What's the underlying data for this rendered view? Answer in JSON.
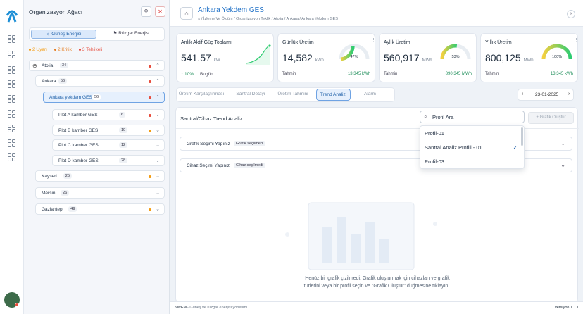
{
  "sidebar": {
    "logo": "logo-icon"
  },
  "tree": {
    "title": "Organizasyon Ağacı",
    "tabs": [
      "Güneş Enerjisi",
      "Rüzgar Enerjisi"
    ],
    "alerts": [
      {
        "label": "2 Uyarı",
        "color": "#f39c12"
      },
      {
        "label": "2 Kritik",
        "color": "#e67e22"
      },
      {
        "label": "3 Tehlikeli",
        "color": "#e74c3c"
      }
    ],
    "root": {
      "label": "Atolia",
      "count": "34"
    },
    "ankara": {
      "label": "Ankara",
      "count": "56"
    },
    "selected": {
      "label": "Ankara yekdem GES",
      "count": "56"
    },
    "plots": [
      {
        "label": "Plot A kamber GES",
        "count": "6"
      },
      {
        "label": "Plot B kamber GES",
        "count": "10"
      },
      {
        "label": "Plot C kamber GES",
        "count": "12"
      },
      {
        "label": "Plot D kamber GES",
        "count": "28"
      }
    ],
    "cities": [
      {
        "label": "Kayseri",
        "count": "25"
      },
      {
        "label": "Mersin",
        "count": "26"
      },
      {
        "label": "Gaziantep",
        "count": "49"
      }
    ]
  },
  "header": {
    "title": "Ankara Yekdem GES",
    "breadcrumb": "/ İzleme Ve Ölçüm / Organizasyon Teklik / Atolia / Ankara / Ankara Yekdem GES"
  },
  "kpis": [
    {
      "title": "Anlık Aktif Güç Toplamı",
      "value": "541.57",
      "unit": "kW",
      "change": "↑ 10%",
      "sub": "Bugün"
    },
    {
      "title": "Günlük Üretim",
      "value": "14,582",
      "unit": "kWh",
      "gauge": "47%",
      "gauge_frac": 0.47,
      "foot_label": "Tahmin",
      "foot_value": "13,345 kWh"
    },
    {
      "title": "Aylık Üretim",
      "value": "560,917",
      "unit": "MWh",
      "gauge": "53%",
      "gauge_frac": 0.53,
      "foot_label": "Tahmin",
      "foot_value": "890,345 MWh"
    },
    {
      "title": "Yıllık Üretim",
      "value": "800,125",
      "unit": "MWh",
      "gauge": "100%",
      "gauge_frac": 1.0,
      "foot_label": "Tahmin",
      "foot_value": "13,345 kWh"
    }
  ],
  "tabs": [
    "Üretim Karşılaştırması",
    "Santral Detayı",
    "Üretim Tahmini",
    "Trend Analizi",
    "Alarm"
  ],
  "date": "23-01-2025",
  "panel": {
    "title": "Santral/Cihaz Trend Analiz",
    "search_value": "Profil Ara",
    "create_button": "+ Grafik Oluştur"
  },
  "dropdown": [
    {
      "label": "Profil-01"
    },
    {
      "label": "Santral Analiz Profili - 01",
      "checked": "✓"
    },
    {
      "label": "Profil-03"
    }
  ],
  "accordions": [
    {
      "label": "Grafik Seçimi Yapınız",
      "badge": "Grafik seçilmedi"
    },
    {
      "label": "Cihaz Seçimi Yapınız",
      "badge": "Cihaz seçilmedi"
    }
  ],
  "empty": {
    "line1": "Henüz bir grafik çizilmedi. Grafik oluşturmak için cihazları ve grafik",
    "line2": "türlerini veya bir profil seçin ve \"Grafik Oluştur\" düğmesine tıklayın ."
  },
  "footer": {
    "brand": "SWEM",
    "tagline": "- Güneş ve rüzgar enerjisi yönetimi",
    "version": "versiyon 1.1.1"
  }
}
